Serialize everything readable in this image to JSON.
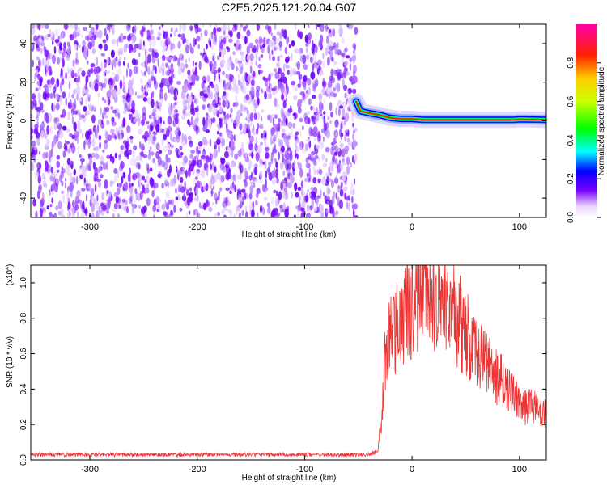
{
  "title": "C2E5.2025.121.20.04.G07",
  "chart_data": [
    {
      "type": "heatmap",
      "xlabel": "Height of straight line (km)",
      "ylabel": "Frequency (Hz)",
      "xlim": [
        -355,
        125
      ],
      "ylim": [
        -50,
        50
      ],
      "xticks": [
        -300,
        -200,
        -100,
        0,
        100
      ],
      "yticks": [
        -40,
        -20,
        0,
        20,
        40
      ],
      "noise_region_x": [
        -355,
        -52
      ],
      "signal_track": [
        {
          "x": -52,
          "y": 10
        },
        {
          "x": -48,
          "y": 5
        },
        {
          "x": -40,
          "y": 4
        },
        {
          "x": -30,
          "y": 3
        },
        {
          "x": -20,
          "y": 1.5
        },
        {
          "x": -10,
          "y": 1
        },
        {
          "x": 0,
          "y": 1
        },
        {
          "x": 10,
          "y": 0.5
        },
        {
          "x": 50,
          "y": 0.5
        },
        {
          "x": 95,
          "y": 0.5
        },
        {
          "x": 100,
          "y": 0.8
        },
        {
          "x": 125,
          "y": 0.5
        }
      ],
      "colorbar": {
        "label": "Normalized spectral amplitude",
        "range": [
          0,
          1
        ],
        "ticks": [
          "0.0",
          "0.2",
          "0.4",
          "0.6",
          "0.8"
        ]
      }
    },
    {
      "type": "line",
      "xlabel": "Height of straight line (km)",
      "ylabel": "SNR (10 * v/v)",
      "multiplier": "(x10",
      "multiplier_exp": "4",
      "multiplier_close": ")",
      "xlim": [
        -355,
        125
      ],
      "ylim": [
        0,
        1.1
      ],
      "xticks": [
        -300,
        -200,
        -100,
        0,
        100
      ],
      "yticks": [
        "0.0",
        "0.2",
        "0.4",
        "0.6",
        "0.8",
        "1.0"
      ],
      "series_color": "#ee3333",
      "envelope": [
        {
          "x": -355,
          "y": 0.03
        },
        {
          "x": -40,
          "y": 0.03
        },
        {
          "x": -32,
          "y": 0.05
        },
        {
          "x": -28,
          "y": 0.25
        },
        {
          "x": -25,
          "y": 0.6
        },
        {
          "x": -20,
          "y": 0.7
        },
        {
          "x": -10,
          "y": 0.8
        },
        {
          "x": 0,
          "y": 0.88
        },
        {
          "x": 10,
          "y": 0.97
        },
        {
          "x": 20,
          "y": 0.93
        },
        {
          "x": 30,
          "y": 0.9
        },
        {
          "x": 40,
          "y": 0.82
        },
        {
          "x": 50,
          "y": 0.72
        },
        {
          "x": 60,
          "y": 0.6
        },
        {
          "x": 70,
          "y": 0.53
        },
        {
          "x": 80,
          "y": 0.46
        },
        {
          "x": 90,
          "y": 0.42
        },
        {
          "x": 95,
          "y": 0.38
        },
        {
          "x": 100,
          "y": 0.3
        },
        {
          "x": 110,
          "y": 0.3
        },
        {
          "x": 125,
          "y": 0.28
        }
      ]
    }
  ]
}
